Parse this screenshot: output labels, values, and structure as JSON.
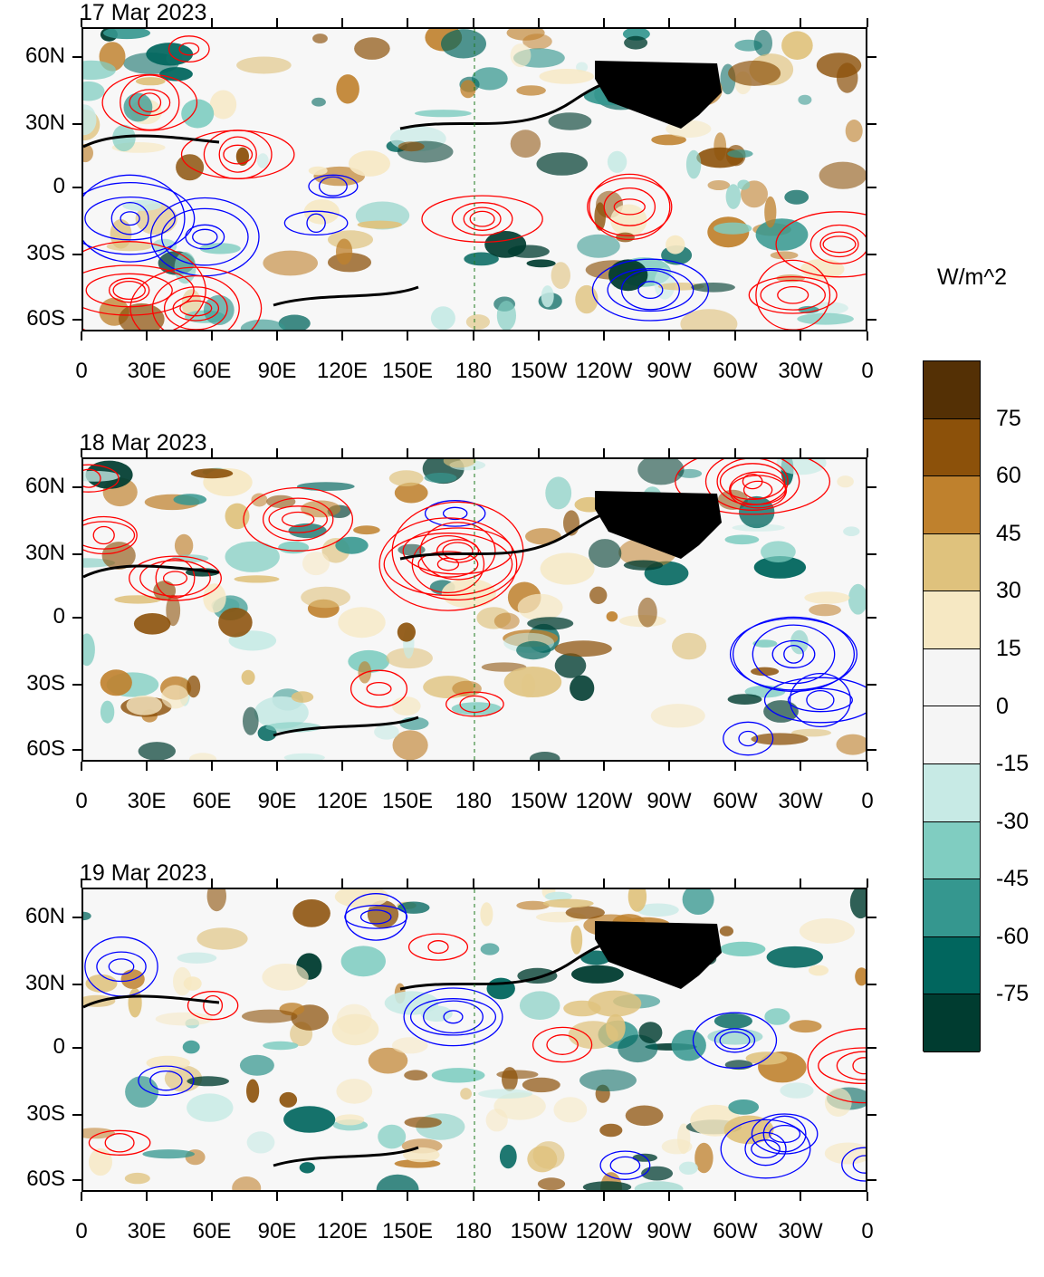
{
  "panels": [
    {
      "title": "17 Mar 2023"
    },
    {
      "title": "18 Mar 2023"
    },
    {
      "title": "19 Mar 2023"
    }
  ],
  "lat_labels": [
    "60N",
    "30N",
    "0",
    "30S",
    "60S"
  ],
  "lon_labels": [
    "0",
    "30E",
    "60E",
    "90E",
    "120E",
    "150E",
    "180",
    "150W",
    "120W",
    "90W",
    "60W",
    "30W",
    "0"
  ],
  "colorbar": {
    "units": "W/m^2",
    "labels": [
      "75",
      "60",
      "45",
      "30",
      "15",
      "0",
      "-15",
      "-30",
      "-45",
      "-60",
      "-75"
    ],
    "colors": [
      "#543005",
      "#8c510a",
      "#bf812d",
      "#dfc27d",
      "#f6e8c3",
      "#f5f5f5",
      "#f5f5f5",
      "#c7eae5",
      "#80cdc1",
      "#35978f",
      "#01665e",
      "#003c30"
    ]
  },
  "colors": {
    "contour_positive": "#ff0000",
    "contour_negative": "#0000ff",
    "coastline": "#1e7a1e",
    "jet_contour": "#000000",
    "land_mask": "#000000"
  }
}
